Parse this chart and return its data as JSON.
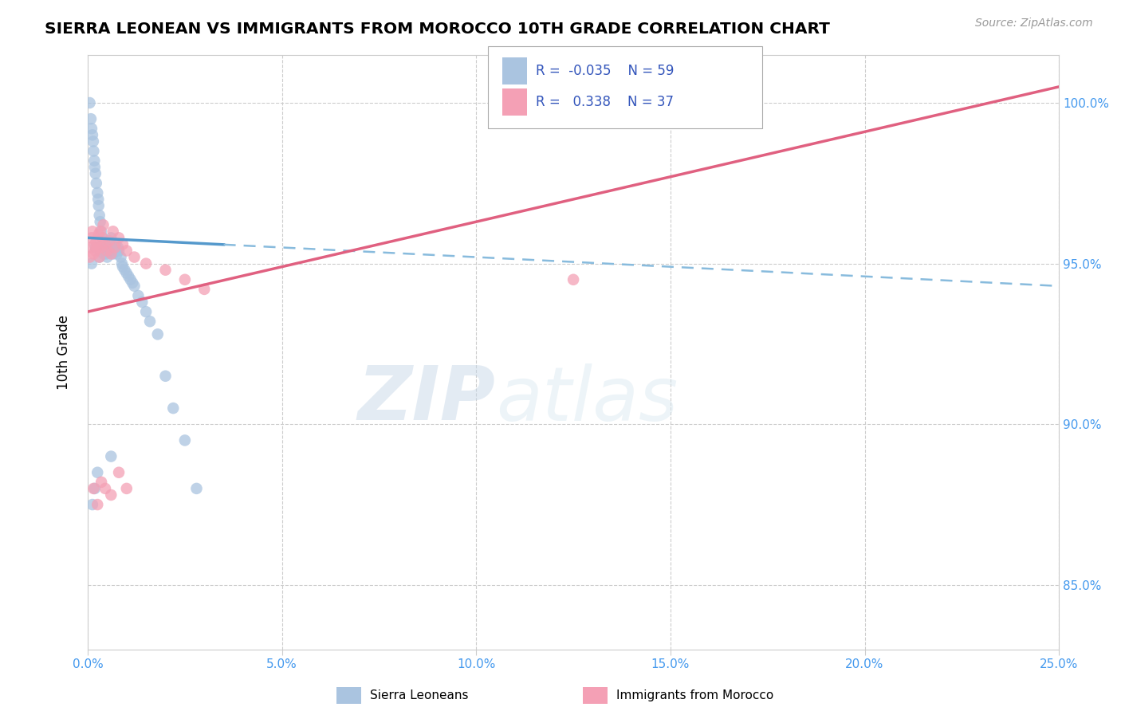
{
  "title": "SIERRA LEONEAN VS IMMIGRANTS FROM MOROCCO 10TH GRADE CORRELATION CHART",
  "source_text": "Source: ZipAtlas.com",
  "ylabel": "10th Grade",
  "watermark_zip": "ZIP",
  "watermark_atlas": "atlas",
  "xlim": [
    0.0,
    25.0
  ],
  "ylim": [
    83.0,
    101.5
  ],
  "x_ticks": [
    0.0,
    5.0,
    10.0,
    15.0,
    20.0,
    25.0
  ],
  "x_tick_labels": [
    "0.0%",
    "5.0%",
    "10.0%",
    "15.0%",
    "20.0%",
    "25.0%"
  ],
  "y_ticks": [
    85.0,
    90.0,
    95.0,
    100.0
  ],
  "y_tick_labels": [
    "85.0%",
    "90.0%",
    "95.0%",
    "100.0%"
  ],
  "legend_R1": "-0.035",
  "legend_N1": "59",
  "legend_R2": "0.338",
  "legend_N2": "37",
  "color_blue": "#aac4e0",
  "color_pink": "#f4a0b5",
  "trendline_blue_solid": "#5599cc",
  "trendline_blue_dash": "#88bbdd",
  "trendline_pink": "#e06080",
  "blue_x": [
    0.05,
    0.08,
    0.1,
    0.12,
    0.14,
    0.15,
    0.17,
    0.18,
    0.2,
    0.22,
    0.25,
    0.27,
    0.28,
    0.3,
    0.32,
    0.35,
    0.38,
    0.4,
    0.42,
    0.45,
    0.48,
    0.5,
    0.52,
    0.55,
    0.58,
    0.6,
    0.65,
    0.68,
    0.7,
    0.72,
    0.75,
    0.78,
    0.8,
    0.85,
    0.88,
    0.9,
    0.95,
    1.0,
    1.05,
    1.1,
    1.15,
    1.2,
    1.3,
    1.4,
    1.5,
    1.6,
    1.8,
    2.0,
    2.2,
    2.5,
    2.8,
    0.1,
    0.2,
    0.3,
    0.4,
    0.12,
    0.18,
    0.25,
    0.6
  ],
  "blue_y": [
    100.0,
    99.5,
    99.2,
    99.0,
    98.8,
    98.5,
    98.2,
    98.0,
    97.8,
    97.5,
    97.2,
    97.0,
    96.8,
    96.5,
    96.3,
    96.0,
    95.8,
    95.6,
    95.5,
    95.4,
    95.3,
    95.2,
    95.5,
    95.7,
    95.6,
    95.8,
    95.3,
    95.5,
    95.4,
    95.6,
    95.3,
    95.5,
    95.4,
    95.2,
    95.0,
    94.9,
    94.8,
    94.7,
    94.6,
    94.5,
    94.4,
    94.3,
    94.0,
    93.8,
    93.5,
    93.2,
    92.8,
    91.5,
    90.5,
    89.5,
    88.0,
    95.0,
    95.5,
    95.2,
    95.3,
    87.5,
    88.0,
    88.5,
    89.0
  ],
  "pink_x": [
    0.05,
    0.08,
    0.1,
    0.12,
    0.15,
    0.18,
    0.2,
    0.22,
    0.25,
    0.28,
    0.3,
    0.32,
    0.35,
    0.38,
    0.4,
    0.45,
    0.5,
    0.55,
    0.6,
    0.65,
    0.7,
    0.8,
    0.9,
    1.0,
    1.2,
    1.5,
    2.0,
    2.5,
    3.0,
    0.15,
    0.25,
    0.35,
    0.45,
    0.6,
    0.8,
    1.0,
    12.5
  ],
  "pink_y": [
    95.2,
    95.5,
    95.8,
    96.0,
    95.3,
    95.6,
    95.4,
    95.7,
    95.5,
    95.9,
    95.2,
    96.0,
    95.5,
    95.8,
    96.2,
    95.6,
    95.4,
    95.7,
    95.3,
    96.0,
    95.5,
    95.8,
    95.6,
    95.4,
    95.2,
    95.0,
    94.8,
    94.5,
    94.2,
    88.0,
    87.5,
    88.2,
    88.0,
    87.8,
    88.5,
    88.0,
    94.5
  ],
  "blue_trend_x0": 0.0,
  "blue_trend_x1": 25.0,
  "blue_trend_y0": 95.8,
  "blue_trend_y1": 94.3,
  "blue_solid_end_x": 3.5,
  "pink_trend_x0": 0.0,
  "pink_trend_x1": 25.0,
  "pink_trend_y0": 93.5,
  "pink_trend_y1": 100.5
}
